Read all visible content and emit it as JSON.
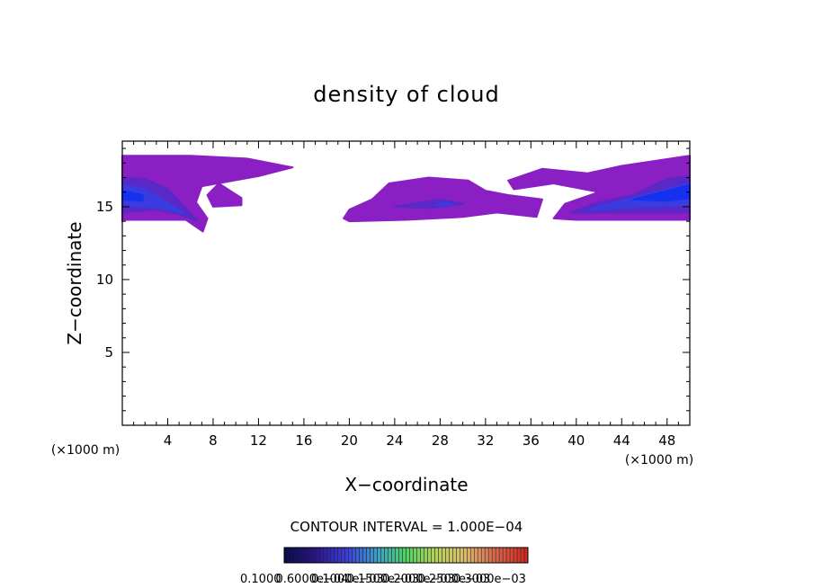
{
  "chart_data": {
    "type": "heatmap",
    "title": "density of cloud",
    "xlabel": "X−coordinate",
    "ylabel": "Z−coordinate",
    "x_unit": "(×1000 m)",
    "y_unit": "(×1000 m)",
    "xlim": [
      0,
      50
    ],
    "ylim": [
      0,
      19.5
    ],
    "x_ticks": [
      4,
      8,
      12,
      16,
      20,
      24,
      28,
      32,
      36,
      40,
      44,
      48
    ],
    "y_ticks": [
      5,
      10,
      15
    ],
    "contour_interval_label": "CONTOUR INTERVAL = 1.000E−04",
    "contour_interval": 0.0001,
    "colorbar_labels": [
      "0.1000",
      "0.6000e−04",
      "0.1000e−03",
      "0.1500e−03",
      "0.2000e−03",
      "0.2500e−03",
      "0.3000e−03"
    ],
    "colors": {
      "outer": "#8a1fc4",
      "mid": "#5a28c6",
      "inner": "#3a3be0",
      "core": "#1630f0"
    },
    "cloud_regions": [
      {
        "name": "left-edge-cloud",
        "level_outer": [
          [
            0,
            14
          ],
          [
            0,
            18.5
          ],
          [
            6,
            18.5
          ],
          [
            11,
            18.3
          ],
          [
            15,
            17.7
          ],
          [
            12,
            17.1
          ],
          [
            7,
            16.4
          ],
          [
            6.5,
            15.3
          ],
          [
            7.5,
            14.2
          ],
          [
            7.1,
            13.3
          ],
          [
            5.6,
            14.1
          ],
          [
            0,
            14.1
          ]
        ],
        "level_mid": [
          [
            0,
            14.6
          ],
          [
            0,
            17
          ],
          [
            2,
            16.9
          ],
          [
            4,
            16.2
          ],
          [
            5.5,
            15
          ],
          [
            6.6,
            14
          ],
          [
            5,
            14.5
          ],
          [
            3,
            14.8
          ]
        ],
        "level_inner": [
          [
            0,
            15.1
          ],
          [
            0,
            16.5
          ],
          [
            2,
            16.2
          ],
          [
            3.5,
            15.5
          ],
          [
            5.5,
            14.5
          ],
          [
            3.5,
            14.9
          ]
        ],
        "level_core": [
          [
            0,
            15.5
          ],
          [
            0,
            16.1
          ],
          [
            1.8,
            15.8
          ],
          [
            1.8,
            15.4
          ]
        ]
      },
      {
        "name": "left-cloud-streak",
        "level_outer": [
          [
            7.5,
            15.8
          ],
          [
            8.5,
            16.6
          ],
          [
            10.5,
            15.6
          ],
          [
            10.5,
            15.1
          ],
          [
            8,
            15
          ]
        ],
        "level_mid": [],
        "level_inner": [],
        "level_core": []
      },
      {
        "name": "central-cloud",
        "level_outer": [
          [
            19.5,
            14.2
          ],
          [
            20,
            14.8
          ],
          [
            22,
            15.5
          ],
          [
            23.5,
            16.6
          ],
          [
            27,
            17
          ],
          [
            30.5,
            16.8
          ],
          [
            32,
            16.1
          ],
          [
            34,
            15.8
          ],
          [
            37,
            15.5
          ],
          [
            36.5,
            14.3
          ],
          [
            33,
            14.6
          ],
          [
            30,
            14.3
          ],
          [
            25,
            14.1
          ],
          [
            20,
            14
          ]
        ],
        "level_mid": [
          [
            24,
            15
          ],
          [
            28,
            15.5
          ],
          [
            30,
            15.2
          ],
          [
            27,
            14.9
          ]
        ],
        "level_inner": [
          [
            27.5,
            15.1
          ],
          [
            28.6,
            15.3
          ],
          [
            29.2,
            15.1
          ]
        ],
        "level_core": []
      },
      {
        "name": "right-edge-cloud",
        "level_outer": [
          [
            34,
            16.8
          ],
          [
            37,
            17.6
          ],
          [
            41,
            17.3
          ],
          [
            44,
            17.8
          ],
          [
            50,
            18.5
          ],
          [
            50,
            14.1
          ],
          [
            40,
            14.1
          ],
          [
            38,
            14.2
          ],
          [
            39,
            15.2
          ],
          [
            42,
            16
          ],
          [
            38,
            16.6
          ],
          [
            34.5,
            16.2
          ]
        ],
        "level_mid": [
          [
            39.5,
            14.6
          ],
          [
            42,
            15.3
          ],
          [
            45,
            15.8
          ],
          [
            48,
            16.9
          ],
          [
            50,
            17.1
          ],
          [
            50,
            14.6
          ],
          [
            45,
            14.6
          ]
        ],
        "level_inner": [
          [
            41,
            14.8
          ],
          [
            44,
            15.4
          ],
          [
            47,
            16
          ],
          [
            50,
            16.6
          ],
          [
            50,
            15.1
          ],
          [
            46,
            15
          ]
        ],
        "level_core": [
          [
            45,
            15.5
          ],
          [
            48,
            16.1
          ],
          [
            50,
            16.5
          ],
          [
            50,
            15.6
          ],
          [
            48,
            15.4
          ]
        ]
      }
    ]
  }
}
